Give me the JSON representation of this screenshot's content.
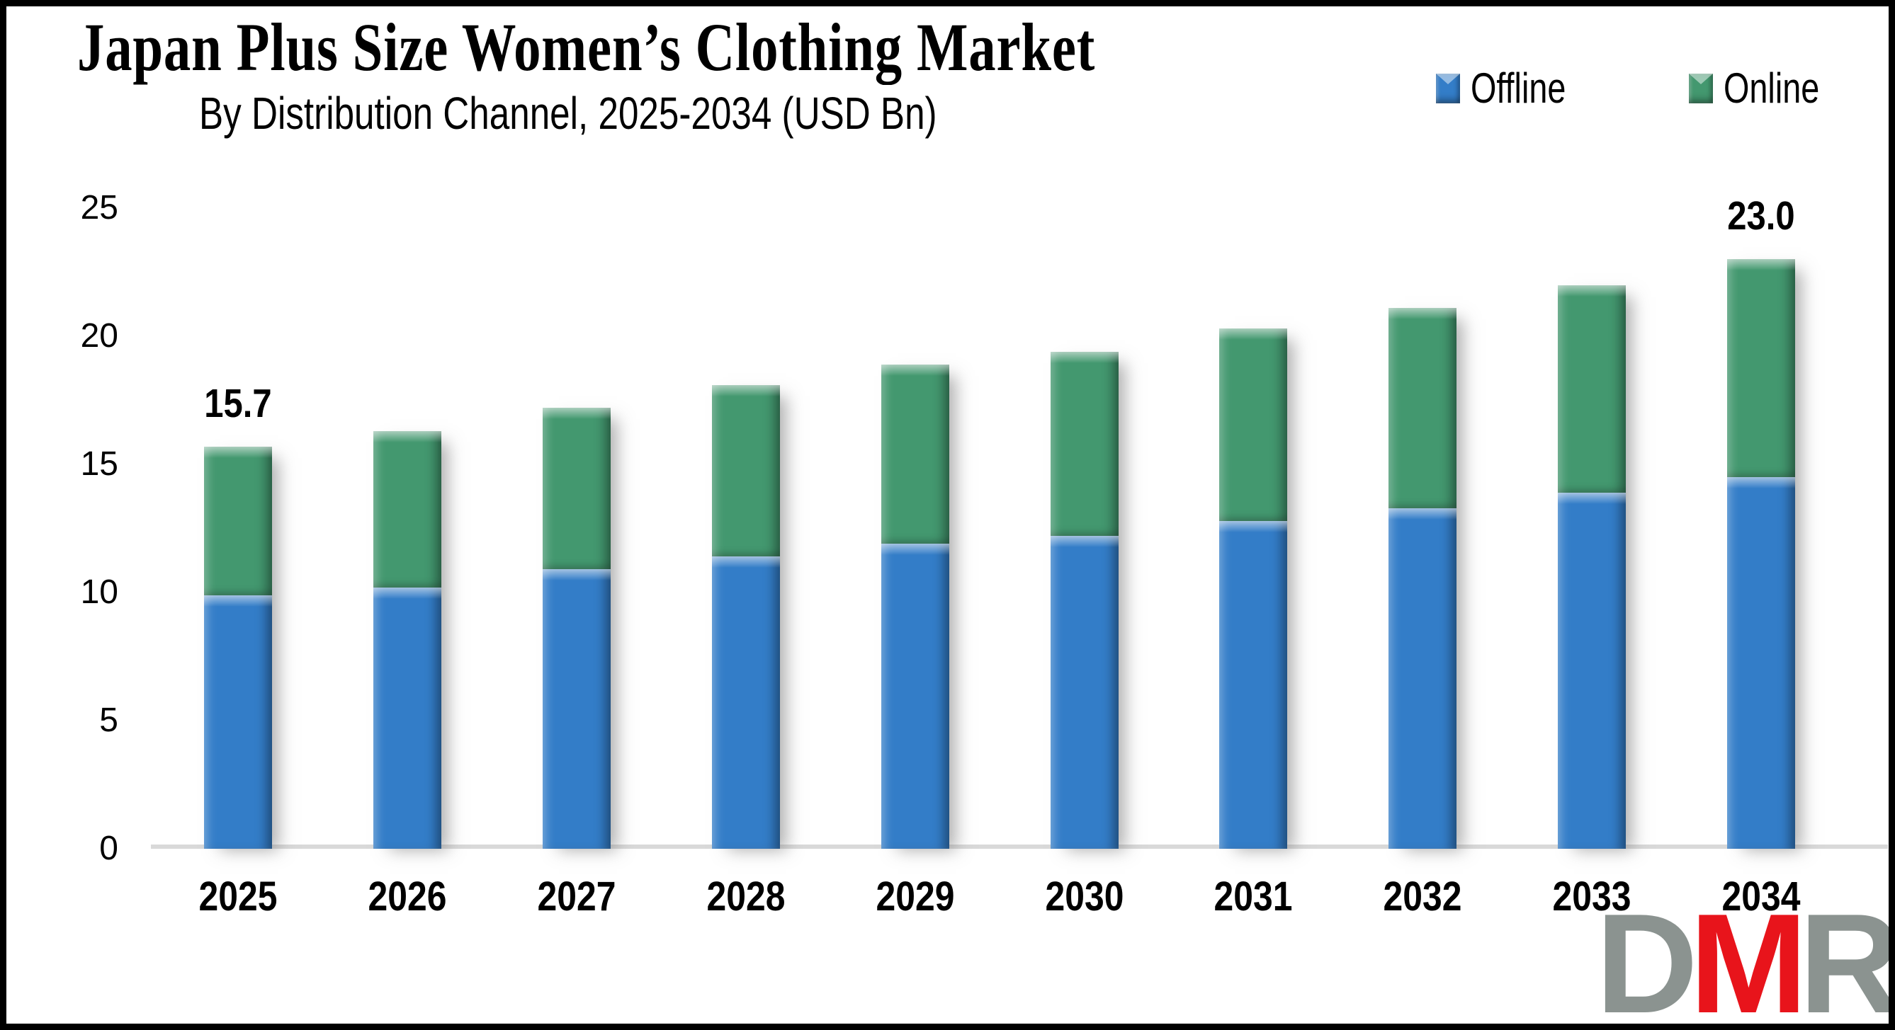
{
  "title": "Japan Plus Size Women’s Clothing Market",
  "subtitle": "By Distribution Channel, 2025-2034 (USD Bn)",
  "legend": {
    "items": [
      {
        "label": "Offline",
        "color": "#337DC8"
      },
      {
        "label": "Online",
        "color": "#43986F"
      }
    ]
  },
  "logo": {
    "letter_d": "D",
    "letter_m": "M",
    "letter_r": "R"
  },
  "colors": {
    "offline": "#337DC8",
    "online": "#43986F",
    "axis_line": "#D9D9D9",
    "logo_gray": "#8B9390",
    "logo_red": "#E8141B",
    "text": "#000000"
  },
  "chart_data": {
    "type": "bar",
    "stacked": true,
    "title": "Japan Plus Size Women’s Clothing Market",
    "subtitle": "By Distribution Channel, 2025-2034 (USD Bn)",
    "unit": "USD Bn",
    "categories": [
      "2025",
      "2026",
      "2027",
      "2028",
      "2029",
      "2030",
      "2031",
      "2032",
      "2033",
      "2034"
    ],
    "series": [
      {
        "name": "Offline",
        "color": "#337DC8",
        "values": [
          9.9,
          10.2,
          10.9,
          11.4,
          11.9,
          12.2,
          12.8,
          13.3,
          13.9,
          14.5
        ]
      },
      {
        "name": "Online",
        "color": "#43986F",
        "values": [
          5.8,
          6.1,
          6.3,
          6.7,
          7.0,
          7.2,
          7.5,
          7.8,
          8.1,
          8.5
        ]
      }
    ],
    "data_labels": [
      {
        "category": "2025",
        "text": "15.7"
      },
      {
        "category": "2034",
        "text": "23.0"
      }
    ],
    "ylim": [
      0,
      25
    ],
    "yticks": [
      0,
      5,
      10,
      15,
      20,
      25
    ],
    "grid": false,
    "legend_position": "top-right"
  }
}
